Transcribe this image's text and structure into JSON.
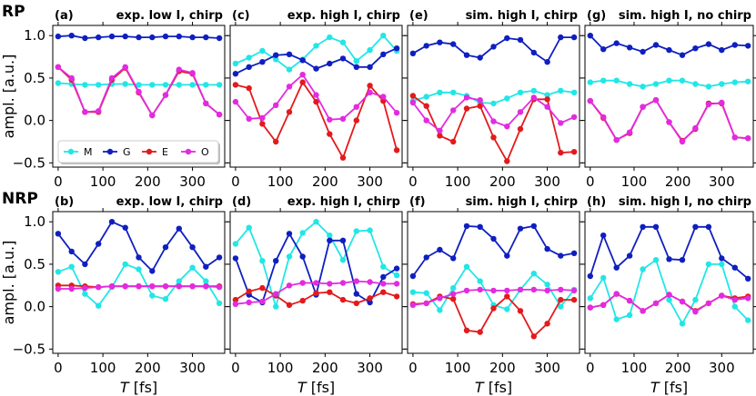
{
  "row_labels": [
    "RP",
    "NRP"
  ],
  "colors": {
    "M": "#22e6e6",
    "G": "#0f1fbf",
    "E": "#e31a1c",
    "O": "#e22be0"
  },
  "chart_data": [
    {
      "type": "line",
      "label": "(a)",
      "title": "exp. low I, chirp",
      "xlabel": "",
      "ylabel": "ampl. [a.u.]",
      "x": [
        0,
        30,
        60,
        90,
        120,
        150,
        180,
        210,
        240,
        270,
        300,
        330,
        360
      ],
      "xlim": [
        -12,
        372
      ],
      "ylim": [
        -0.55,
        1.12
      ],
      "xticks": [
        0,
        100,
        200,
        300
      ],
      "yticks": [
        -0.5,
        0.0,
        0.5,
        1.0
      ],
      "legend": {
        "position": "lower-left",
        "entries": [
          "M",
          "G",
          "E",
          "O"
        ]
      },
      "series": [
        {
          "name": "M",
          "values": [
            0.44,
            0.43,
            0.42,
            0.42,
            0.43,
            0.43,
            0.42,
            0.42,
            0.42,
            0.42,
            0.42,
            0.42,
            0.42
          ]
        },
        {
          "name": "G",
          "values": [
            0.99,
            1.0,
            0.97,
            0.98,
            0.99,
            0.99,
            0.98,
            0.98,
            0.99,
            0.99,
            0.98,
            0.98,
            0.97
          ]
        },
        {
          "name": "E",
          "values": [
            0.63,
            0.48,
            0.1,
            0.1,
            0.48,
            0.62,
            0.33,
            0.06,
            0.3,
            0.58,
            0.55,
            0.2,
            0.07
          ]
        },
        {
          "name": "O",
          "values": [
            0.63,
            0.5,
            0.1,
            0.11,
            0.5,
            0.63,
            0.34,
            0.06,
            0.3,
            0.6,
            0.56,
            0.2,
            0.07
          ]
        }
      ]
    },
    {
      "type": "line",
      "label": "(c)",
      "title": "exp. high I, chirp",
      "xlabel": "",
      "ylabel": "",
      "x": [
        0,
        30,
        60,
        90,
        120,
        150,
        180,
        210,
        240,
        270,
        300,
        330,
        360
      ],
      "xlim": [
        -12,
        372
      ],
      "ylim": [
        -0.55,
        1.12
      ],
      "xticks": [
        0,
        100,
        200,
        300
      ],
      "yticks": [
        -0.5,
        0.0,
        0.5,
        1.0
      ],
      "series": [
        {
          "name": "M",
          "values": [
            0.67,
            0.74,
            0.82,
            0.72,
            0.6,
            0.72,
            0.88,
            0.98,
            0.92,
            0.7,
            0.83,
            1.0,
            0.82
          ]
        },
        {
          "name": "G",
          "values": [
            0.55,
            0.63,
            0.69,
            0.77,
            0.78,
            0.71,
            0.61,
            0.67,
            0.73,
            0.63,
            0.63,
            0.78,
            0.85
          ]
        },
        {
          "name": "E",
          "values": [
            0.42,
            0.38,
            -0.04,
            -0.25,
            0.1,
            0.45,
            0.22,
            -0.16,
            -0.44,
            -0.0,
            0.41,
            0.23,
            -0.35
          ]
        },
        {
          "name": "O",
          "values": [
            0.22,
            0.02,
            0.03,
            0.18,
            0.4,
            0.54,
            0.3,
            0.01,
            0.02,
            0.16,
            0.33,
            0.28,
            0.09
          ]
        }
      ]
    },
    {
      "type": "line",
      "label": "(e)",
      "title": "sim. high I, chirp",
      "xlabel": "",
      "ylabel": "",
      "x": [
        0,
        30,
        60,
        90,
        120,
        150,
        180,
        210,
        240,
        270,
        300,
        330,
        360
      ],
      "xlim": [
        -12,
        372
      ],
      "ylim": [
        -0.55,
        1.12
      ],
      "xticks": [
        0,
        100,
        200,
        300
      ],
      "yticks": [
        -0.5,
        0.0,
        0.5,
        1.0
      ],
      "series": [
        {
          "name": "M",
          "values": [
            0.23,
            0.28,
            0.33,
            0.33,
            0.29,
            0.21,
            0.2,
            0.26,
            0.33,
            0.35,
            0.3,
            0.35,
            0.33
          ]
        },
        {
          "name": "G",
          "values": [
            0.79,
            0.88,
            0.92,
            0.9,
            0.77,
            0.74,
            0.87,
            0.97,
            0.95,
            0.8,
            0.69,
            0.98,
            0.98
          ]
        },
        {
          "name": "E",
          "values": [
            0.29,
            0.17,
            -0.18,
            -0.25,
            0.14,
            0.17,
            -0.2,
            -0.48,
            -0.1,
            0.25,
            0.25,
            -0.38,
            -0.37
          ]
        },
        {
          "name": "O",
          "values": [
            0.21,
            0.0,
            -0.12,
            0.12,
            0.27,
            0.24,
            -0.01,
            -0.07,
            0.1,
            0.27,
            0.16,
            -0.03,
            0.04
          ]
        }
      ]
    },
    {
      "type": "line",
      "label": "(g)",
      "title": "sim. high I, no chirp",
      "xlabel": "",
      "ylabel": "",
      "x": [
        0,
        30,
        60,
        90,
        120,
        150,
        180,
        210,
        240,
        270,
        300,
        330,
        360
      ],
      "xlim": [
        -12,
        372
      ],
      "ylim": [
        -0.55,
        1.12
      ],
      "xticks": [
        0,
        100,
        200,
        300
      ],
      "yticks": [
        -0.5,
        0.0,
        0.5,
        1.0
      ],
      "series": [
        {
          "name": "M",
          "values": [
            0.45,
            0.47,
            0.47,
            0.43,
            0.4,
            0.43,
            0.47,
            0.47,
            0.43,
            0.4,
            0.43,
            0.45,
            0.46
          ]
        },
        {
          "name": "G",
          "values": [
            1.0,
            0.84,
            0.91,
            0.86,
            0.81,
            0.89,
            0.83,
            0.77,
            0.85,
            0.9,
            0.83,
            0.89,
            0.88
          ]
        },
        {
          "name": "E",
          "values": [
            0.23,
            0.03,
            -0.23,
            -0.15,
            0.16,
            0.24,
            -0.02,
            -0.24,
            -0.1,
            0.2,
            0.2,
            -0.2,
            -0.21
          ]
        },
        {
          "name": "O",
          "values": [
            0.23,
            0.04,
            -0.23,
            -0.14,
            0.16,
            0.24,
            -0.02,
            -0.25,
            -0.09,
            0.19,
            0.21,
            -0.2,
            -0.21
          ]
        }
      ]
    },
    {
      "type": "line",
      "label": "(b)",
      "title": "exp. low I, chirp",
      "xlabel": "T [fs]",
      "ylabel": "ampl. [a.u.]",
      "x": [
        0,
        30,
        60,
        90,
        120,
        150,
        180,
        210,
        240,
        270,
        300,
        330,
        360
      ],
      "xlim": [
        -12,
        372
      ],
      "ylim": [
        -0.55,
        1.12
      ],
      "xticks": [
        0,
        100,
        200,
        300
      ],
      "yticks": [
        -0.5,
        0.0,
        0.5,
        1.0
      ],
      "series": [
        {
          "name": "M",
          "values": [
            0.41,
            0.47,
            0.15,
            0.01,
            0.23,
            0.5,
            0.44,
            0.13,
            0.09,
            0.3,
            0.46,
            0.3,
            0.04
          ]
        },
        {
          "name": "G",
          "values": [
            0.86,
            0.65,
            0.5,
            0.74,
            1.0,
            0.93,
            0.58,
            0.42,
            0.7,
            0.92,
            0.7,
            0.47,
            0.58
          ]
        },
        {
          "name": "E",
          "values": [
            0.25,
            0.25,
            0.24,
            0.23,
            0.24,
            0.24,
            0.24,
            0.24,
            0.24,
            0.24,
            0.24,
            0.24,
            0.24
          ]
        },
        {
          "name": "O",
          "values": [
            0.21,
            0.21,
            0.22,
            0.23,
            0.24,
            0.24,
            0.24,
            0.24,
            0.24,
            0.24,
            0.24,
            0.24,
            0.23
          ]
        }
      ]
    },
    {
      "type": "line",
      "label": "(d)",
      "title": "exp. high I, chirp",
      "xlabel": "T [fs]",
      "ylabel": "",
      "x": [
        0,
        30,
        60,
        90,
        120,
        150,
        180,
        210,
        240,
        270,
        300,
        330,
        360
      ],
      "xlim": [
        -12,
        372
      ],
      "ylim": [
        -0.55,
        1.12
      ],
      "xticks": [
        0,
        100,
        200,
        300
      ],
      "yticks": [
        -0.5,
        0.0,
        0.5,
        1.0
      ],
      "series": [
        {
          "name": "M",
          "values": [
            0.74,
            0.93,
            0.54,
            0.0,
            0.59,
            0.87,
            1.0,
            0.84,
            0.55,
            0.89,
            0.9,
            0.47,
            0.37
          ]
        },
        {
          "name": "G",
          "values": [
            0.57,
            0.14,
            0.05,
            0.54,
            0.86,
            0.59,
            0.14,
            0.78,
            0.78,
            0.15,
            0.05,
            0.35,
            0.45
          ]
        },
        {
          "name": "E",
          "values": [
            0.08,
            0.18,
            0.22,
            0.13,
            0.02,
            0.07,
            0.16,
            0.17,
            0.08,
            0.04,
            0.1,
            0.17,
            0.12
          ]
        },
        {
          "name": "O",
          "values": [
            0.03,
            0.05,
            0.06,
            0.15,
            0.25,
            0.28,
            0.28,
            0.27,
            0.28,
            0.3,
            0.29,
            0.27,
            0.27
          ]
        }
      ]
    },
    {
      "type": "line",
      "label": "(f)",
      "title": "sim. high I, chirp",
      "xlabel": "T [fs]",
      "ylabel": "",
      "x": [
        0,
        30,
        60,
        90,
        120,
        150,
        180,
        210,
        240,
        270,
        300,
        330,
        360
      ],
      "xlim": [
        -12,
        372
      ],
      "ylim": [
        -0.55,
        1.12
      ],
      "xticks": [
        0,
        100,
        200,
        300
      ],
      "yticks": [
        -0.5,
        0.0,
        0.5,
        1.0
      ],
      "series": [
        {
          "name": "M",
          "values": [
            0.17,
            0.16,
            -0.04,
            0.22,
            0.47,
            0.3,
            0.02,
            -0.03,
            0.2,
            0.39,
            0.26,
            0.0,
            0.2
          ]
        },
        {
          "name": "G",
          "values": [
            0.36,
            0.58,
            0.67,
            0.57,
            0.95,
            0.94,
            0.8,
            0.6,
            0.92,
            0.95,
            0.68,
            0.6,
            0.63
          ]
        },
        {
          "name": "E",
          "values": [
            0.03,
            0.04,
            0.12,
            0.09,
            -0.28,
            -0.3,
            -0.02,
            0.12,
            -0.05,
            -0.35,
            -0.2,
            0.08,
            0.08
          ]
        },
        {
          "name": "O",
          "values": [
            0.02,
            0.04,
            0.1,
            0.15,
            0.19,
            0.2,
            0.19,
            0.19,
            0.2,
            0.2,
            0.19,
            0.2,
            0.19
          ]
        }
      ]
    },
    {
      "type": "line",
      "label": "(h)",
      "title": "sim. high I, no chirp",
      "xlabel": "T [fs]",
      "ylabel": "",
      "x": [
        0,
        30,
        60,
        90,
        120,
        150,
        180,
        210,
        240,
        270,
        300,
        330,
        360
      ],
      "xlim": [
        -12,
        372
      ],
      "ylim": [
        -0.55,
        1.12
      ],
      "xticks": [
        0,
        100,
        200,
        300
      ],
      "yticks": [
        -0.5,
        0.0,
        0.5,
        1.0
      ],
      "series": [
        {
          "name": "M",
          "values": [
            0.1,
            0.34,
            -0.15,
            -0.1,
            0.44,
            0.55,
            0.08,
            -0.2,
            0.08,
            0.5,
            0.5,
            0.0,
            -0.16
          ]
        },
        {
          "name": "G",
          "values": [
            0.36,
            0.84,
            0.46,
            0.6,
            0.94,
            0.94,
            0.56,
            0.55,
            0.94,
            0.94,
            0.57,
            0.46,
            0.33
          ]
        },
        {
          "name": "E",
          "values": [
            -0.01,
            0.02,
            0.15,
            0.07,
            -0.05,
            0.04,
            0.14,
            0.06,
            -0.05,
            0.04,
            0.13,
            0.1,
            0.12
          ]
        },
        {
          "name": "O",
          "values": [
            -0.01,
            0.02,
            0.15,
            0.07,
            -0.05,
            0.04,
            0.14,
            0.06,
            -0.06,
            0.04,
            0.13,
            0.08,
            0.1
          ]
        }
      ]
    }
  ]
}
